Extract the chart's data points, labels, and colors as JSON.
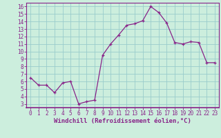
{
  "x": [
    0,
    1,
    2,
    3,
    4,
    5,
    6,
    7,
    8,
    9,
    10,
    11,
    12,
    13,
    14,
    15,
    16,
    17,
    18,
    19,
    20,
    21,
    22,
    23
  ],
  "y": [
    6.5,
    5.5,
    5.5,
    4.5,
    5.8,
    6.0,
    3.0,
    3.3,
    3.5,
    9.5,
    11.0,
    12.2,
    13.5,
    13.7,
    14.1,
    16.0,
    15.2,
    13.8,
    11.2,
    11.0,
    11.3,
    11.2,
    8.5,
    8.5
  ],
  "line_color": "#882288",
  "marker": "+",
  "bg_color": "#cceedd",
  "grid_color": "#99cccc",
  "xlabel": "Windchill (Refroidissement éolien,°C)",
  "xlim": [
    -0.5,
    23.5
  ],
  "ylim": [
    2.5,
    16.5
  ],
  "yticks": [
    3,
    4,
    5,
    6,
    7,
    8,
    9,
    10,
    11,
    12,
    13,
    14,
    15,
    16
  ],
  "xticks": [
    0,
    1,
    2,
    3,
    4,
    5,
    6,
    7,
    8,
    9,
    10,
    11,
    12,
    13,
    14,
    15,
    16,
    17,
    18,
    19,
    20,
    21,
    22,
    23
  ],
  "tick_fontsize": 5.5,
  "label_fontsize": 6.5
}
